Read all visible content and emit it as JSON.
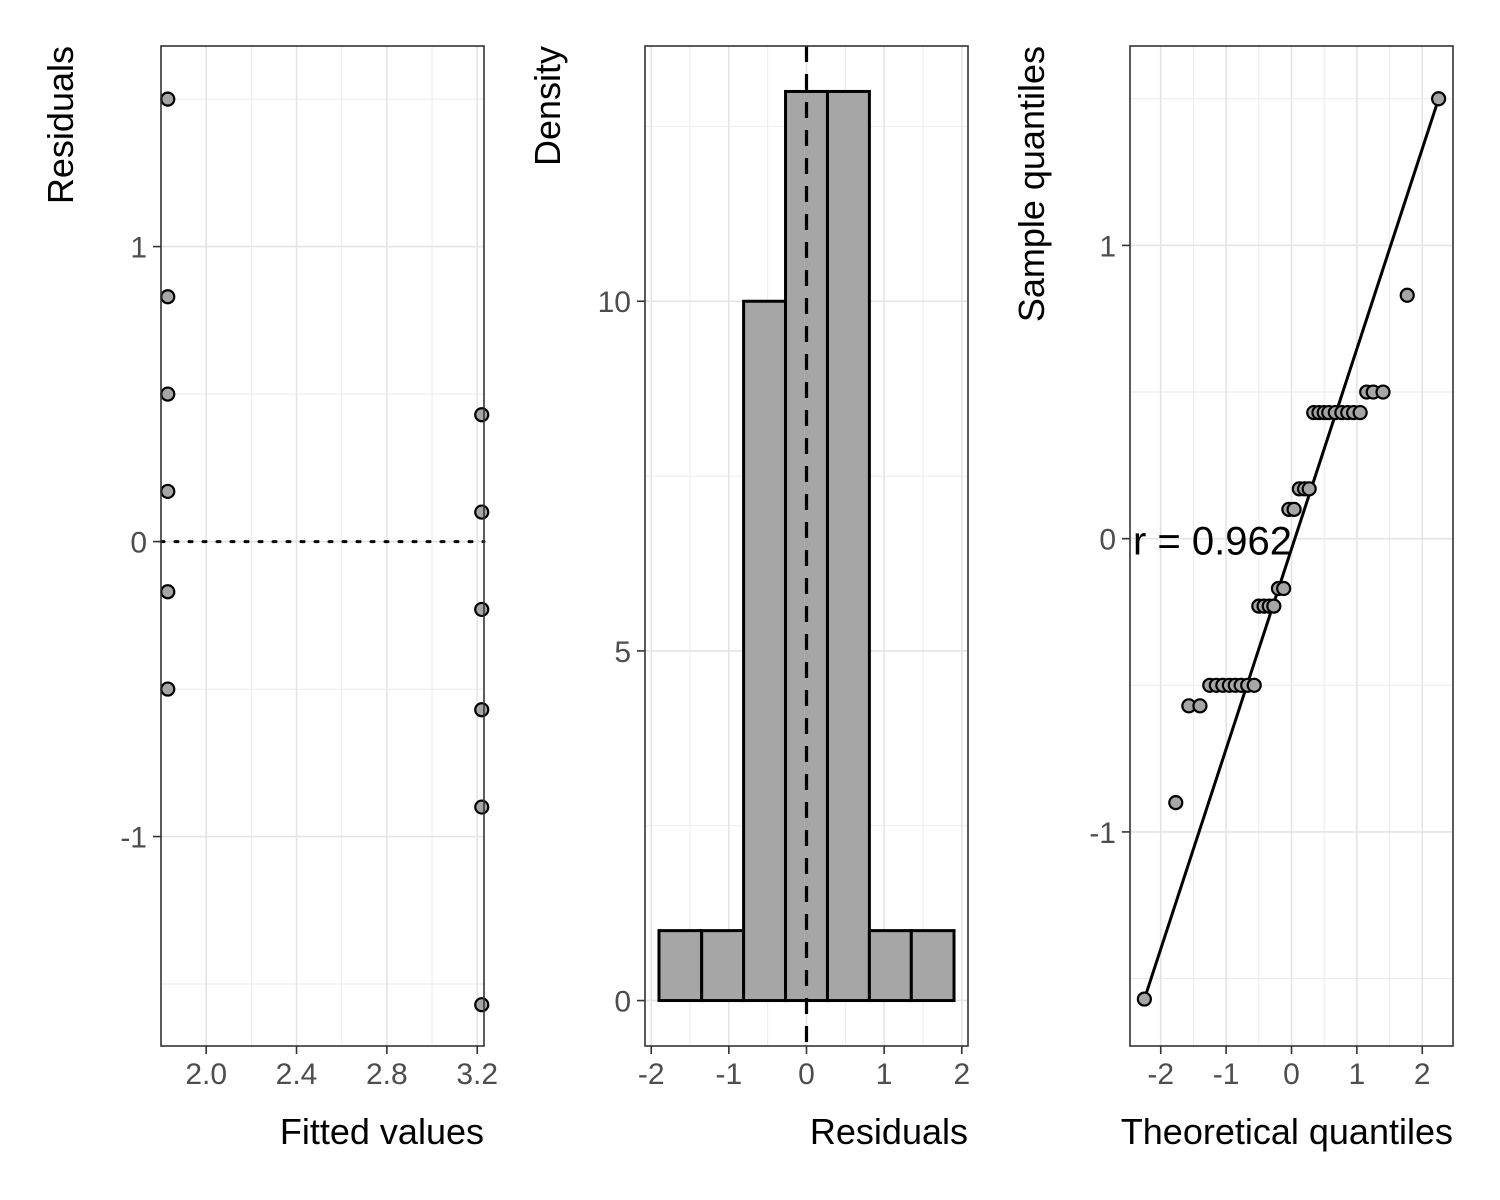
{
  "chart_data": [
    {
      "type": "scatter",
      "xlabel": "Fitted values",
      "ylabel": "Residuals",
      "xlim": [
        1.8,
        3.23
      ],
      "ylim": [
        -1.71,
        1.68
      ],
      "xticks": [
        2.0,
        2.4,
        2.8,
        3.2
      ],
      "xtick_labels": [
        "2.0",
        "2.4",
        "2.8",
        "3.2"
      ],
      "yticks": [
        -1,
        0,
        1
      ],
      "ytick_labels": [
        "-1",
        "0",
        "1"
      ],
      "reference_line": {
        "y": 0,
        "style": "dotted"
      },
      "grid": true,
      "marker_color": "#a6a6a6",
      "points": [
        {
          "x": 1.83,
          "y": 1.5
        },
        {
          "x": 1.83,
          "y": 0.83
        },
        {
          "x": 1.83,
          "y": 0.5
        },
        {
          "x": 1.83,
          "y": 0.17
        },
        {
          "x": 1.83,
          "y": -0.17
        },
        {
          "x": 1.83,
          "y": -0.5
        },
        {
          "x": 3.22,
          "y": 0.43
        },
        {
          "x": 3.22,
          "y": 0.1
        },
        {
          "x": 3.22,
          "y": -0.23
        },
        {
          "x": 3.22,
          "y": -0.57
        },
        {
          "x": 3.22,
          "y": -0.9
        },
        {
          "x": 3.22,
          "y": -1.57
        }
      ]
    },
    {
      "type": "bar",
      "subtype": "histogram",
      "xlabel": "Residuals",
      "ylabel": "Density",
      "xlim": [
        -2.08,
        2.08
      ],
      "ylim": [
        -0.65,
        13.65
      ],
      "xticks": [
        -2,
        -1,
        0,
        1,
        2
      ],
      "xtick_labels": [
        "-2",
        "-1",
        "0",
        "1",
        "2"
      ],
      "yticks": [
        0,
        5,
        10
      ],
      "ytick_labels": [
        "0",
        "5",
        "10"
      ],
      "reference_line": {
        "x": 0,
        "style": "dashed"
      },
      "grid": true,
      "bar_color": "#a6a6a6",
      "bins": [
        {
          "x0": -1.9,
          "x1": -1.35,
          "density": 1
        },
        {
          "x0": -1.35,
          "x1": -0.81,
          "density": 1
        },
        {
          "x0": -0.81,
          "x1": -0.27,
          "density": 10
        },
        {
          "x0": -0.27,
          "x1": 0.27,
          "density": 13
        },
        {
          "x0": 0.27,
          "x1": 0.81,
          "density": 13
        },
        {
          "x0": 0.81,
          "x1": 1.35,
          "density": 1
        },
        {
          "x0": 1.35,
          "x1": 1.9,
          "density": 1
        }
      ]
    },
    {
      "type": "scatter",
      "subtype": "qq",
      "xlabel": "Theoretical quantiles",
      "ylabel": "Sample quantiles",
      "xlim": [
        -2.47,
        2.47
      ],
      "ylim": [
        -1.73,
        1.68
      ],
      "xticks": [
        -2,
        -1,
        0,
        1,
        2
      ],
      "xtick_labels": [
        "-2",
        "-1",
        "0",
        "1",
        "2"
      ],
      "yticks": [
        -1,
        0,
        1
      ],
      "ytick_labels": [
        "-1",
        "0",
        "1"
      ],
      "annotation": "r = 0.962",
      "grid": true,
      "marker_color": "#a6a6a6",
      "fit_line": [
        {
          "x": -2.25,
          "y": -1.57
        },
        {
          "x": 2.25,
          "y": 1.5
        }
      ],
      "points": [
        {
          "x": -2.25,
          "y": -1.57
        },
        {
          "x": -1.77,
          "y": -0.9
        },
        {
          "x": -1.57,
          "y": -0.57
        },
        {
          "x": -1.4,
          "y": -0.57
        },
        {
          "x": -1.25,
          "y": -0.5
        },
        {
          "x": -1.15,
          "y": -0.5
        },
        {
          "x": -1.05,
          "y": -0.5
        },
        {
          "x": -0.95,
          "y": -0.5
        },
        {
          "x": -0.86,
          "y": -0.5
        },
        {
          "x": -0.77,
          "y": -0.5
        },
        {
          "x": -0.67,
          "y": -0.5
        },
        {
          "x": -0.57,
          "y": -0.5
        },
        {
          "x": -0.5,
          "y": -0.23
        },
        {
          "x": -0.42,
          "y": -0.23
        },
        {
          "x": -0.34,
          "y": -0.23
        },
        {
          "x": -0.27,
          "y": -0.23
        },
        {
          "x": -0.2,
          "y": -0.17
        },
        {
          "x": -0.12,
          "y": -0.17
        },
        {
          "x": -0.04,
          "y": 0.1
        },
        {
          "x": 0.04,
          "y": 0.1
        },
        {
          "x": 0.12,
          "y": 0.17
        },
        {
          "x": 0.2,
          "y": 0.17
        },
        {
          "x": 0.27,
          "y": 0.17
        },
        {
          "x": 0.34,
          "y": 0.43
        },
        {
          "x": 0.42,
          "y": 0.43
        },
        {
          "x": 0.5,
          "y": 0.43
        },
        {
          "x": 0.57,
          "y": 0.43
        },
        {
          "x": 0.67,
          "y": 0.43
        },
        {
          "x": 0.77,
          "y": 0.43
        },
        {
          "x": 0.86,
          "y": 0.43
        },
        {
          "x": 0.95,
          "y": 0.43
        },
        {
          "x": 1.05,
          "y": 0.43
        },
        {
          "x": 1.15,
          "y": 0.5
        },
        {
          "x": 1.25,
          "y": 0.5
        },
        {
          "x": 1.4,
          "y": 0.5
        },
        {
          "x": 1.77,
          "y": 0.83
        },
        {
          "x": 2.25,
          "y": 1.5
        }
      ]
    }
  ]
}
